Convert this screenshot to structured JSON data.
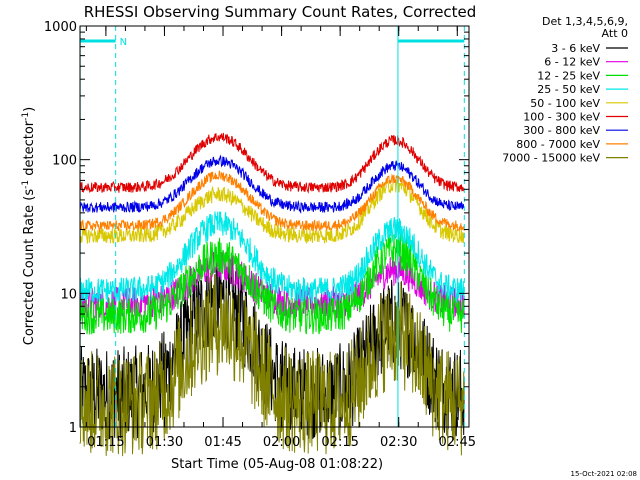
{
  "chart_data": {
    "type": "line",
    "title": "RHESSI Observing Summary Count Rates, Corrected",
    "ylabel_parts": [
      "Corrected Count Rate (s",
      "-1",
      " detector",
      "-1",
      ")"
    ],
    "xlabel": "Start Time (05-Aug-08 01:08:22)",
    "footer": "15-Oct-2021 02:08",
    "y_scale": "log",
    "ylim": [
      1,
      1000
    ],
    "y_ticks": [
      {
        "value": 1,
        "label": "1"
      },
      {
        "value": 10,
        "label": "10"
      },
      {
        "value": 100,
        "label": "100"
      },
      {
        "value": 1000,
        "label": "1000"
      }
    ],
    "xlim_min": [
      68.37,
      168
    ],
    "x_ticks": [
      {
        "value": 75,
        "label": "01:15"
      },
      {
        "value": 90,
        "label": "01:30"
      },
      {
        "value": 105,
        "label": "01:45"
      },
      {
        "value": 120,
        "label": "02:00"
      },
      {
        "value": 135,
        "label": "02:15"
      },
      {
        "value": 150,
        "label": "02:30"
      },
      {
        "value": 165,
        "label": "02:45"
      }
    ],
    "legend_header": [
      "Det 1,3,4,5,6,9,",
      "Att 0"
    ],
    "legend_position": "right",
    "series": [
      {
        "name": "3 - 6 keV",
        "color": "#000000",
        "base": 1.8,
        "peak1": 9,
        "peak2": 6,
        "noise": 0.35
      },
      {
        "name": "6 - 12 keV",
        "color": "#e000e0",
        "base": 8.5,
        "peak1": 16,
        "peak2": 15,
        "noise": 0.12
      },
      {
        "name": "12 - 25 keV",
        "color": "#00e000",
        "base": 6.8,
        "peak1": 19,
        "peak2": 21,
        "noise": 0.14
      },
      {
        "name": "25 - 50 keV",
        "color": "#00e8e8",
        "base": 10.5,
        "peak1": 33,
        "peak2": 30,
        "noise": 0.1
      },
      {
        "name": "50 - 100 keV",
        "color": "#d8c800",
        "base": 27,
        "peak1": 55,
        "peak2": 65,
        "noise": 0.06
      },
      {
        "name": "100 - 300 keV",
        "color": "#e00000",
        "base": 62,
        "peak1": 148,
        "peak2": 140,
        "noise": 0.04
      },
      {
        "name": "300 - 800 keV",
        "color": "#0000e8",
        "base": 44,
        "peak1": 98,
        "peak2": 90,
        "noise": 0.04
      },
      {
        "name": "800 - 7000 keV",
        "color": "#ff8000",
        "base": 32,
        "peak1": 76,
        "peak2": 72,
        "noise": 0.04
      },
      {
        "name": "7000 - 15000 keV",
        "color": "#808000",
        "base": 1.5,
        "peak1": 6,
        "peak2": 5,
        "noise": 0.4
      }
    ],
    "peak_centers_min": [
      104,
      149
    ],
    "peak_width_min": 9,
    "markers": {
      "color": "#00e0e0",
      "solid_lines_min": [
        68.4,
        149.8
      ],
      "dashed_lines_min": [
        77.5,
        166.8
      ],
      "bars": [
        {
          "from_min": 68.4,
          "to_min": 77.5,
          "label": "N"
        },
        {
          "from_min": 149.8,
          "to_min": 166.8,
          "label": ""
        }
      ]
    }
  }
}
